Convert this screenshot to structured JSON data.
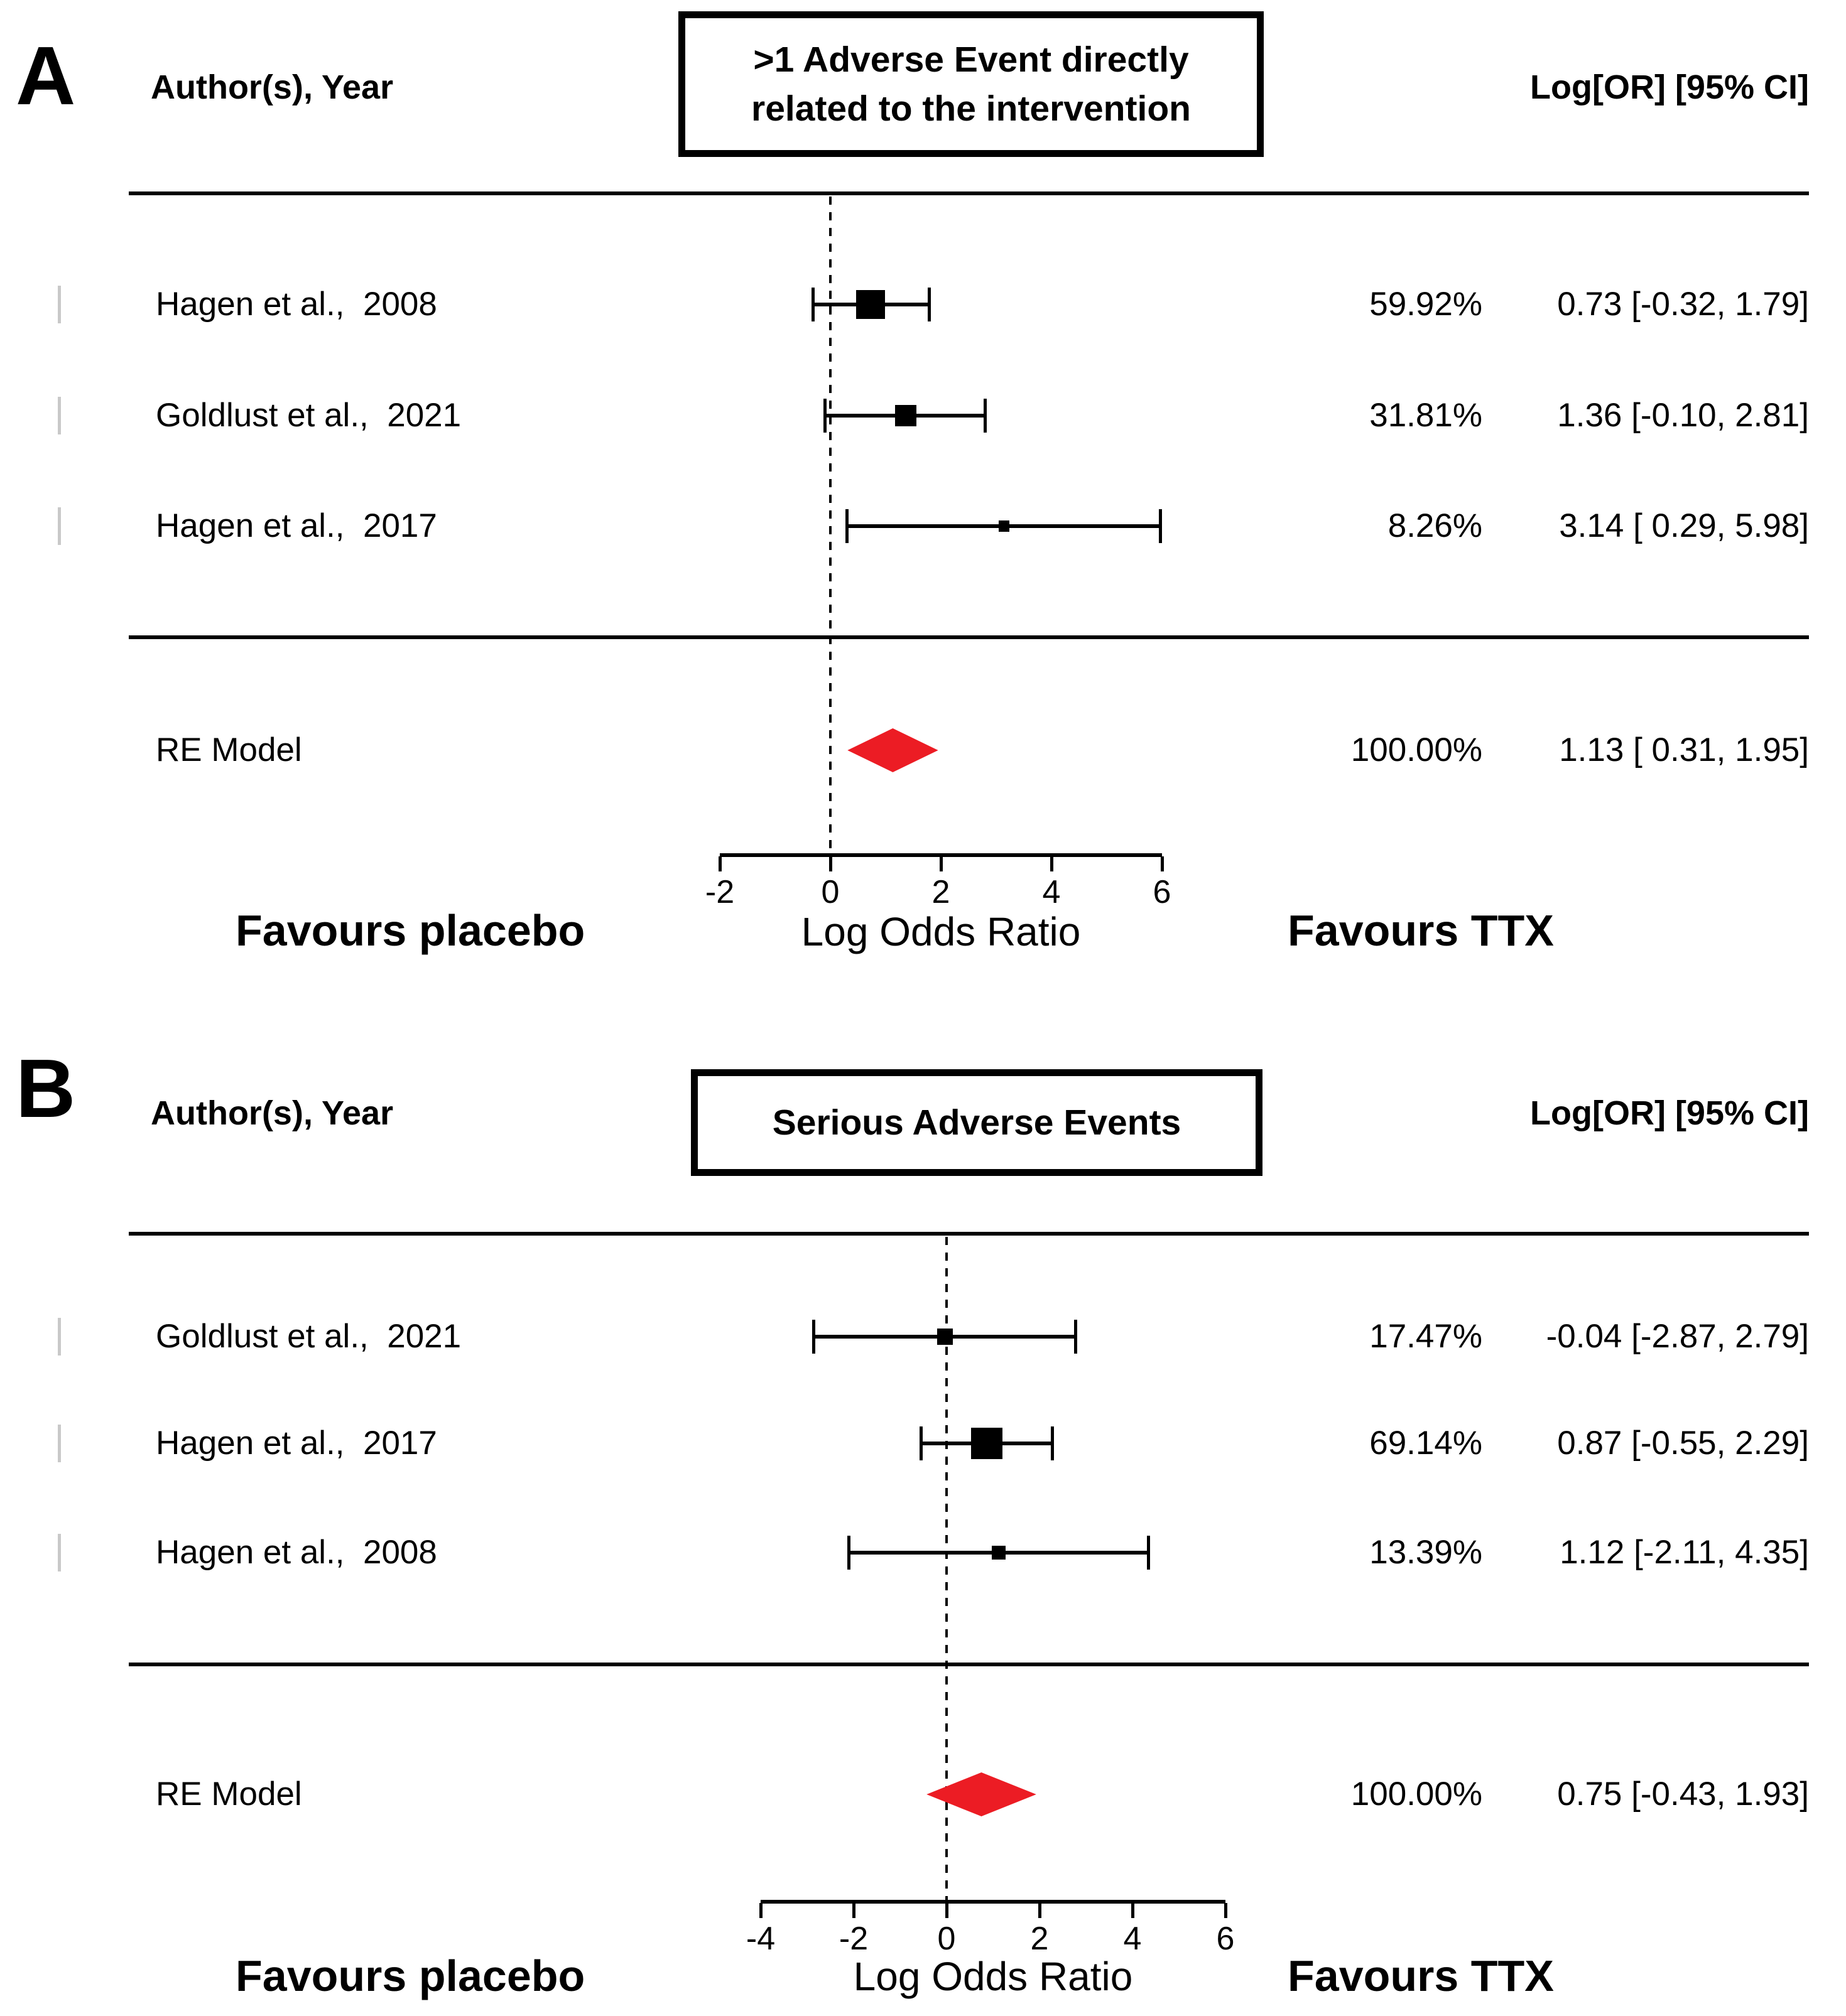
{
  "figure": {
    "background": "#ffffff",
    "text_color": "#000000"
  },
  "chart_data": [
    {
      "type": "forest",
      "panel_label": "A",
      "column_headers": {
        "left": "Author(s), Year",
        "right": "Log[OR] [95% CI]"
      },
      "title": ">1 Adverse Event directly related to the intervention",
      "title_lines": [
        ">1 Adverse Event directly",
        "related to the intervention"
      ],
      "xlabel": "Log Odds Ratio",
      "x_ticks": [
        -2,
        0,
        2,
        4,
        6
      ],
      "zero_reference_line": 0,
      "favours_left": "Favours placebo",
      "favours_right": "Favours TTX",
      "marker_color": "#000000",
      "diamond_color": "#ec1c24",
      "studies": [
        {
          "label": "Hagen et al.,  2008",
          "weight_pct": 59.92,
          "weight_text": "59.92%",
          "estimate": 0.73,
          "ci_lower": -0.32,
          "ci_upper": 1.79,
          "ci_text": "0.73 [-0.32, 1.79]"
        },
        {
          "label": "Goldlust et al.,  2021",
          "weight_pct": 31.81,
          "weight_text": "31.81%",
          "estimate": 1.36,
          "ci_lower": -0.1,
          "ci_upper": 2.81,
          "ci_text": "1.36 [-0.10, 2.81]"
        },
        {
          "label": "Hagen et al.,  2017",
          "weight_pct": 8.26,
          "weight_text": "8.26%",
          "estimate": 3.14,
          "ci_lower": 0.29,
          "ci_upper": 5.98,
          "ci_text": "3.14 [ 0.29, 5.98]"
        }
      ],
      "summary": {
        "label": "RE Model",
        "weight_text": "100.00%",
        "estimate": 1.13,
        "ci_lower": 0.31,
        "ci_upper": 1.95,
        "ci_text": "1.13 [ 0.31, 1.95]"
      }
    },
    {
      "type": "forest",
      "panel_label": "B",
      "column_headers": {
        "left": "Author(s), Year",
        "right": "Log[OR] [95% CI]"
      },
      "title": "Serious Adverse Events",
      "title_lines": [
        "Serious Adverse Events"
      ],
      "xlabel": "Log Odds Ratio",
      "x_ticks": [
        -4,
        -2,
        0,
        2,
        4,
        6
      ],
      "zero_reference_line": 0,
      "favours_left": "Favours placebo",
      "favours_right": "Favours TTX",
      "marker_color": "#000000",
      "diamond_color": "#ec1c24",
      "studies": [
        {
          "label": "Goldlust et al.,  2021",
          "weight_pct": 17.47,
          "weight_text": "17.47%",
          "estimate": -0.04,
          "ci_lower": -2.87,
          "ci_upper": 2.79,
          "ci_text": "-0.04 [-2.87, 2.79]"
        },
        {
          "label": "Hagen et al.,  2017",
          "weight_pct": 69.14,
          "weight_text": "69.14%",
          "estimate": 0.87,
          "ci_lower": -0.55,
          "ci_upper": 2.29,
          "ci_text": "0.87 [-0.55, 2.29]"
        },
        {
          "label": "Hagen et al.,  2008",
          "weight_pct": 13.39,
          "weight_text": "13.39%",
          "estimate": 1.12,
          "ci_lower": -2.11,
          "ci_upper": 4.35,
          "ci_text": "1.12 [-2.11, 4.35]"
        }
      ],
      "summary": {
        "label": "RE Model",
        "weight_text": "100.00%",
        "estimate": 0.75,
        "ci_lower": -0.43,
        "ci_upper": 1.93,
        "ci_text": "0.75 [-0.43, 1.93]"
      }
    }
  ]
}
